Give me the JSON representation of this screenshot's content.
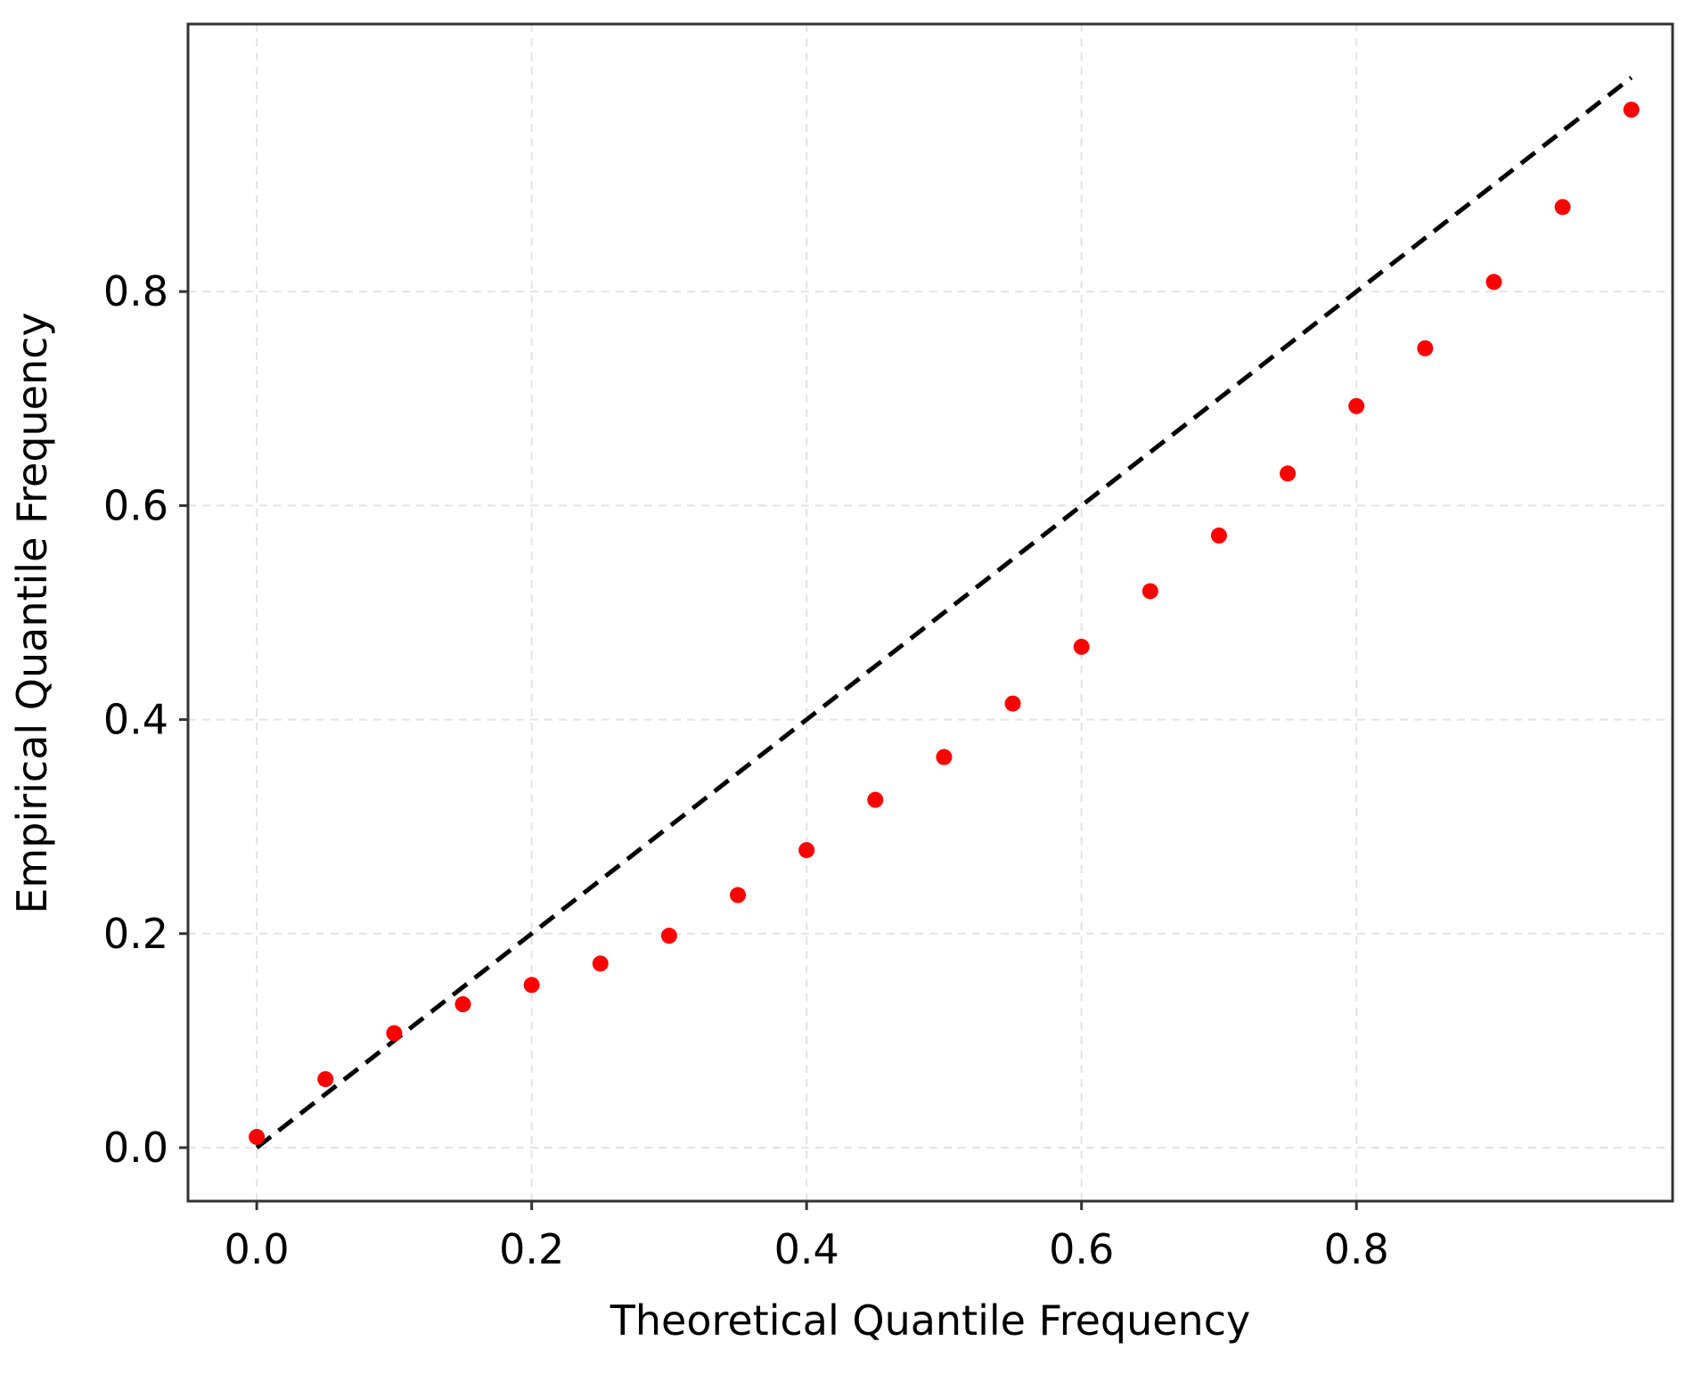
{
  "chart_data": {
    "type": "scatter",
    "title": "",
    "xlabel": "Theoretical Quantile Frequency",
    "ylabel": "Empirical Quantile Frequency",
    "xlim": [
      -0.05,
      1.03
    ],
    "ylim": [
      -0.05,
      1.05
    ],
    "xticks": [
      0.0,
      0.2,
      0.4,
      0.6,
      0.8
    ],
    "xtick_labels": [
      "0.0",
      "0.2",
      "0.4",
      "0.6",
      "0.8"
    ],
    "yticks": [
      0.0,
      0.2,
      0.4,
      0.6,
      0.8
    ],
    "ytick_labels": [
      "0.0",
      "0.2",
      "0.4",
      "0.6",
      "0.8"
    ],
    "grid": true,
    "series": [
      {
        "marker_color": "#ff0000",
        "x": [
          0.0,
          0.05,
          0.1,
          0.15,
          0.2,
          0.25,
          0.3,
          0.35,
          0.4,
          0.45,
          0.5,
          0.55,
          0.6,
          0.65,
          0.7,
          0.75,
          0.8,
          0.85,
          0.9,
          0.95,
          1.0
        ],
        "y": [
          0.01,
          0.064,
          0.107,
          0.134,
          0.152,
          0.172,
          0.198,
          0.236,
          0.278,
          0.325,
          0.365,
          0.415,
          0.468,
          0.52,
          0.572,
          0.63,
          0.693,
          0.747,
          0.809,
          0.879,
          0.97
        ]
      }
    ],
    "reference_line": {
      "style": "dashed",
      "color": "#000000",
      "x": [
        0.0,
        1.0
      ],
      "y": [
        0.0,
        1.0
      ]
    }
  }
}
